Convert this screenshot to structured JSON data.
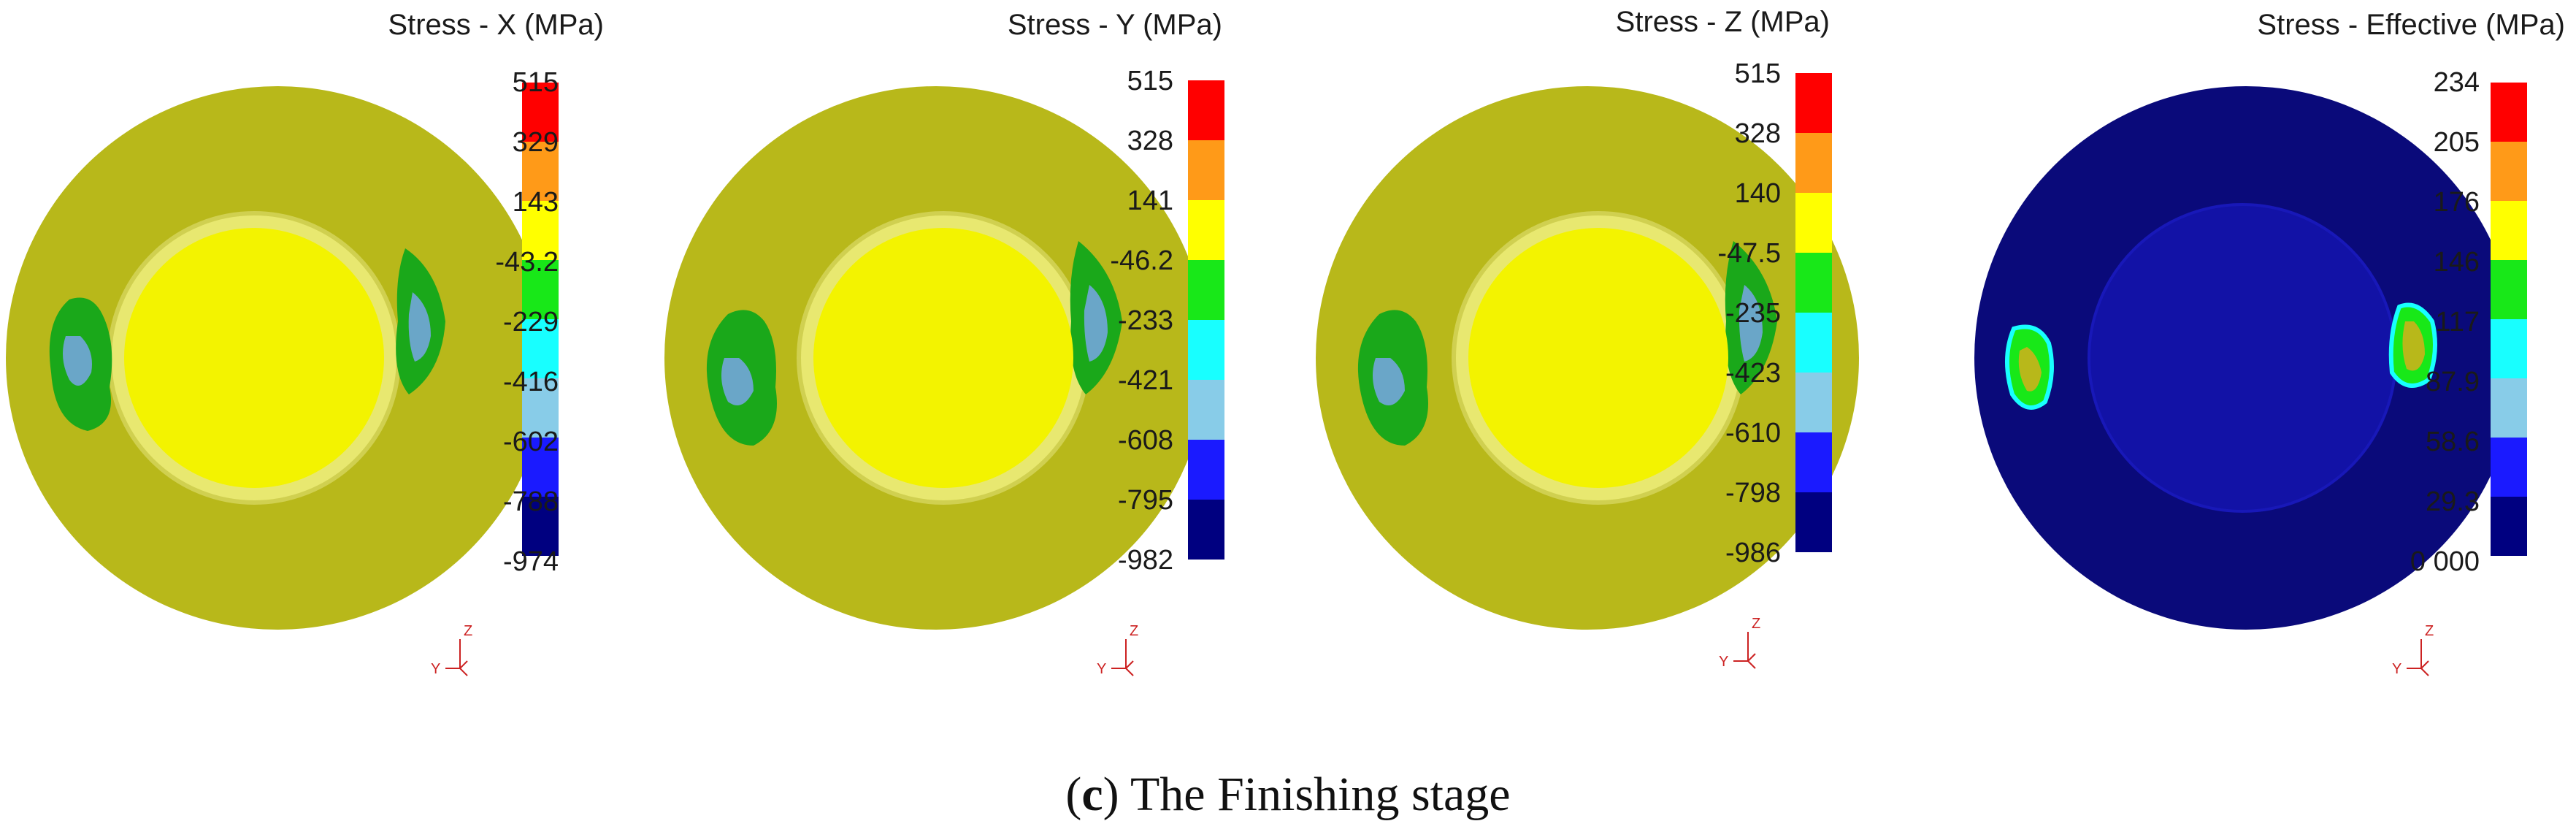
{
  "colors": {
    "outer_ring": "#b8b81a",
    "inner_yellow": "#f3f300",
    "green_patch": "#1aa81a",
    "cyan_patch": "#6aa6c8",
    "dark_navy": "#0a0a7a",
    "inner_navy": "#1212a6",
    "axis_red": "#cc2222"
  },
  "scale_colors": [
    "#ff0000",
    "#ff9a18",
    "#ffff00",
    "#18e818",
    "#18ffff",
    "#88cce8",
    "#1a1aff",
    "#000080"
  ],
  "panels": [
    {
      "title": "Stress - X (MPa)",
      "labels": [
        "515",
        "329",
        "143",
        "-43.2",
        "-229",
        "-416",
        "-602",
        "-788",
        "-974"
      ],
      "style": "normal"
    },
    {
      "title": "Stress - Y (MPa)",
      "labels": [
        "515",
        "328",
        "141",
        "-46.2",
        "-233",
        "-421",
        "-608",
        "-795",
        "-982"
      ],
      "style": "normal"
    },
    {
      "title": "Stress - Z (MPa)",
      "labels": [
        "515",
        "328",
        "140",
        "-47.5",
        "-235",
        "-423",
        "-610",
        "-798",
        "-986"
      ],
      "style": "normal"
    },
    {
      "title": "Stress - Effective (MPa)",
      "labels": [
        "234",
        "205",
        "176",
        "146",
        "117",
        "87.9",
        "58.6",
        "29.3",
        "0 000"
      ],
      "style": "effective"
    }
  ],
  "axis_triad": {
    "vertical_label": "Z",
    "horizontal_label": "Y"
  },
  "caption": {
    "letter": "c",
    "text": "The Finishing stage"
  }
}
